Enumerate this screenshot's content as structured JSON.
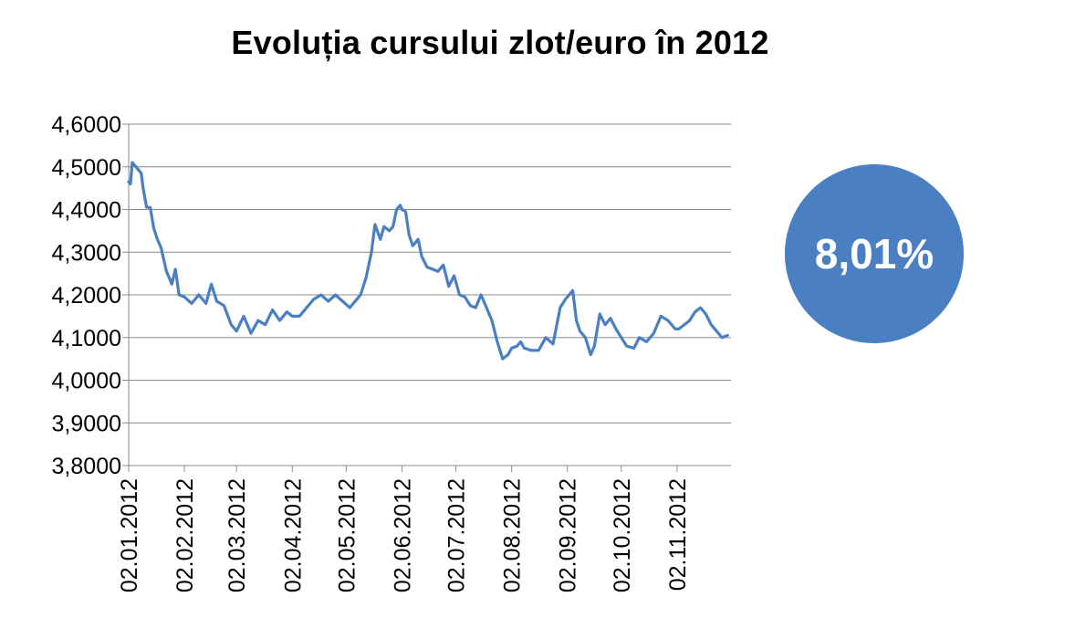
{
  "title": "Evoluția cursului zlot/euro în 2012",
  "badge": {
    "text": "8,01%",
    "color": "#4a7fc1"
  },
  "chart_data": {
    "type": "line",
    "title": "Evoluția cursului zlot/euro în 2012",
    "xlabel": "",
    "ylabel": "",
    "ylim": [
      3.8,
      4.6
    ],
    "yticks": [
      "3,8000",
      "3,9000",
      "4,0000",
      "4,1000",
      "4,2000",
      "4,3000",
      "4,4000",
      "4,5000",
      "4,6000"
    ],
    "xticks": [
      "02.01.2012",
      "02.02.2012",
      "02.03.2012",
      "02.04.2012",
      "02.05.2012",
      "02.06.2012",
      "02.07.2012",
      "02.08.2012",
      "02.09.2012",
      "02.10.2012",
      "02.11.2012"
    ],
    "grid": true,
    "line_color": "#4a7fc1",
    "series": [
      {
        "x": [
          "2012-01-02",
          "2012-01-03",
          "2012-01-04",
          "2012-01-06",
          "2012-01-09",
          "2012-01-10",
          "2012-01-12",
          "2012-01-14",
          "2012-01-16",
          "2012-01-18",
          "2012-01-20",
          "2012-01-23",
          "2012-01-26",
          "2012-01-28",
          "2012-01-30",
          "2012-02-02",
          "2012-02-06",
          "2012-02-10",
          "2012-02-14",
          "2012-02-17",
          "2012-02-20",
          "2012-02-24",
          "2012-02-28",
          "2012-03-02",
          "2012-03-06",
          "2012-03-10",
          "2012-03-14",
          "2012-03-18",
          "2012-03-22",
          "2012-03-26",
          "2012-03-30",
          "2012-04-02",
          "2012-04-06",
          "2012-04-10",
          "2012-04-14",
          "2012-04-18",
          "2012-04-22",
          "2012-04-26",
          "2012-04-30",
          "2012-05-04",
          "2012-05-08",
          "2012-05-10",
          "2012-05-13",
          "2012-05-16",
          "2012-05-18",
          "2012-05-21",
          "2012-05-23",
          "2012-05-26",
          "2012-05-28",
          "2012-05-30",
          "2012-06-01",
          "2012-06-02",
          "2012-06-04",
          "2012-06-06",
          "2012-06-08",
          "2012-06-11",
          "2012-06-13",
          "2012-06-16",
          "2012-06-19",
          "2012-06-22",
          "2012-06-25",
          "2012-06-28",
          "2012-07-01",
          "2012-07-04",
          "2012-07-07",
          "2012-07-10",
          "2012-07-13",
          "2012-07-16",
          "2012-07-19",
          "2012-07-22",
          "2012-07-25",
          "2012-07-28",
          "2012-07-31",
          "2012-08-02",
          "2012-08-05",
          "2012-08-07",
          "2012-08-09",
          "2012-08-13",
          "2012-08-17",
          "2012-08-21",
          "2012-08-25",
          "2012-08-29",
          "2012-09-01",
          "2012-09-03",
          "2012-09-05",
          "2012-09-07",
          "2012-09-09",
          "2012-09-12",
          "2012-09-15",
          "2012-09-17",
          "2012-09-20",
          "2012-09-23",
          "2012-09-26",
          "2012-09-29",
          "2012-10-02",
          "2012-10-05",
          "2012-10-09",
          "2012-10-12",
          "2012-10-16",
          "2012-10-20",
          "2012-10-24",
          "2012-10-28",
          "2012-11-01",
          "2012-11-03",
          "2012-11-06",
          "2012-11-09",
          "2012-11-12",
          "2012-11-15",
          "2012-11-18",
          "2012-11-21",
          "2012-11-24",
          "2012-11-27",
          "2012-11-30"
        ],
        "y": [
          4.465,
          4.46,
          4.51,
          4.5,
          4.485,
          4.45,
          4.405,
          4.405,
          4.355,
          4.33,
          4.31,
          4.255,
          4.225,
          4.26,
          4.2,
          4.195,
          4.18,
          4.2,
          4.18,
          4.225,
          4.185,
          4.175,
          4.13,
          4.115,
          4.15,
          4.11,
          4.14,
          4.13,
          4.165,
          4.14,
          4.16,
          4.15,
          4.15,
          4.17,
          4.19,
          4.2,
          4.185,
          4.2,
          4.185,
          4.17,
          4.19,
          4.2,
          4.24,
          4.3,
          4.365,
          4.33,
          4.36,
          4.35,
          4.36,
          4.4,
          4.41,
          4.4,
          4.395,
          4.34,
          4.315,
          4.33,
          4.29,
          4.265,
          4.26,
          4.255,
          4.27,
          4.22,
          4.245,
          4.2,
          4.195,
          4.175,
          4.17,
          4.2,
          4.17,
          4.14,
          4.09,
          4.05,
          4.06,
          4.075,
          4.08,
          4.09,
          4.075,
          4.07,
          4.07,
          4.1,
          4.085,
          4.17,
          4.19,
          4.2,
          4.21,
          4.14,
          4.115,
          4.1,
          4.06,
          4.08,
          4.155,
          4.13,
          4.145,
          4.12,
          4.1,
          4.08,
          4.075,
          4.1,
          4.09,
          4.11,
          4.15,
          4.14,
          4.12,
          4.12,
          4.13,
          4.14,
          4.16,
          4.17,
          4.155,
          4.13,
          4.115,
          4.1,
          4.105
        ]
      }
    ]
  }
}
